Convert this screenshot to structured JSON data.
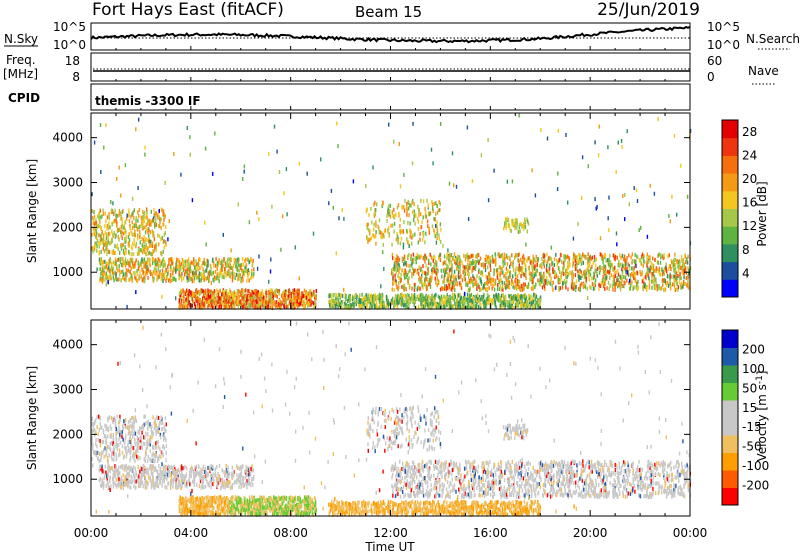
{
  "header": {
    "station": "Fort Hays East (fitACF)",
    "beam": "Beam 15",
    "date": "25/Jun/2019"
  },
  "top_panels": {
    "nsky_label": "N.Sky",
    "nsky_ticks": [
      "10^5",
      "10^0"
    ],
    "nsearch_label": "N.Search",
    "nsearch_ticks": [
      "10^5",
      "10^0"
    ],
    "freq_label_1": "Freq.",
    "freq_label_2": "[MHz]",
    "freq_ticks": [
      "18",
      "8"
    ],
    "nave_label": "Nave",
    "nave_ticks": [
      "60",
      "0"
    ],
    "cpid_label": "CPID",
    "cpid_text": "themis -3300 IF"
  },
  "colors": {
    "power_scale": [
      "#0000ff",
      "#1d4e9e",
      "#2f8f5f",
      "#5fb340",
      "#a6c84a",
      "#f3c620",
      "#f59a14",
      "#f5700d",
      "#ee3510",
      "#e20000"
    ],
    "velocity_scale": [
      "#ff0000",
      "#ff5a00",
      "#ff9e00",
      "#f0c060",
      "#c8c8c8",
      "#c8c8c8",
      "#66cc33",
      "#3a9a4a",
      "#1e5aa8",
      "#0000cc"
    ]
  },
  "chart_data": [
    {
      "type": "heatmap",
      "name": "power",
      "xlabel": "",
      "ylabel": "Slant Range [km]",
      "x_ticks": [
        "00:00",
        "04:00",
        "08:00",
        "12:00",
        "16:00",
        "20:00",
        "00:00"
      ],
      "x_range_hours": [
        0,
        24
      ],
      "ylim": [
        180,
        4550
      ],
      "y_ticks": [
        1000,
        2000,
        3000,
        4000
      ],
      "colorbar_label": "Power [dB]",
      "colorbar_ticks": [
        "4",
        "8",
        "12",
        "16",
        "20",
        "24",
        "28"
      ],
      "colorbar_range": [
        0,
        30
      ]
    },
    {
      "type": "heatmap",
      "name": "velocity",
      "xlabel": "Time UT",
      "ylabel": "Slant Range [km]",
      "x_ticks": [
        "00:00",
        "04:00",
        "08:00",
        "12:00",
        "16:00",
        "20:00",
        "00:00"
      ],
      "x_range_hours": [
        0,
        24
      ],
      "ylim": [
        180,
        4550
      ],
      "y_ticks": [
        1000,
        2000,
        3000,
        4000
      ],
      "colorbar_label": "Velocity [m s^-1]",
      "colorbar_ticks": [
        "-200",
        "-100",
        "-50",
        "-15",
        "15",
        "50",
        "100",
        "200"
      ]
    }
  ]
}
